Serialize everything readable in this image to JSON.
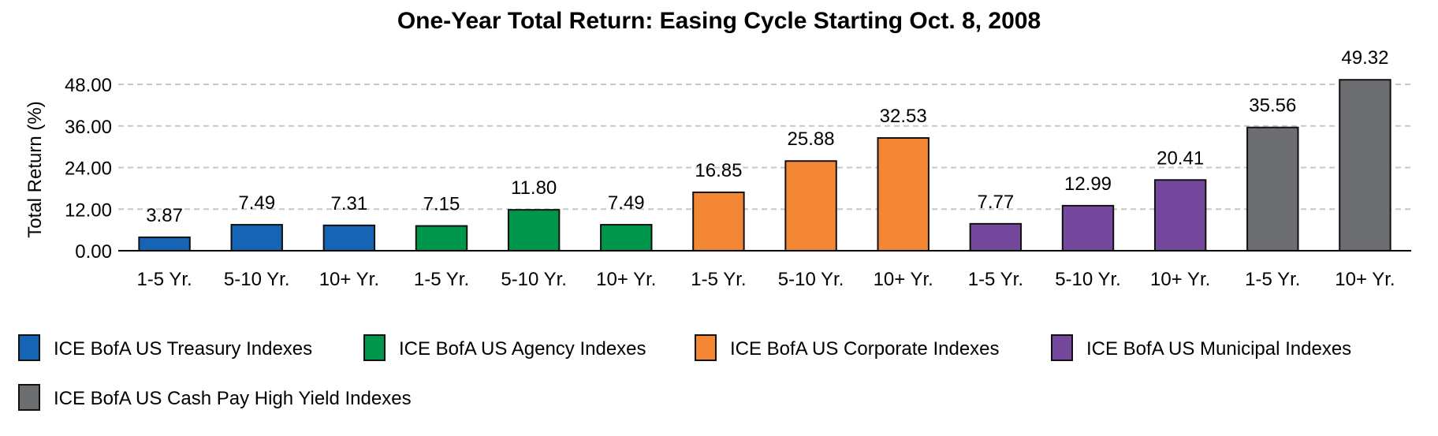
{
  "chart_data": {
    "type": "bar",
    "title": "One-Year Total Return: Easing Cycle Starting Oct. 8, 2008",
    "ylabel": "Total Return (%)",
    "xlabel": "",
    "ylim": [
      0,
      48
    ],
    "yticks": [
      "0.00",
      "12.00",
      "24.00",
      "36.00",
      "48.00"
    ],
    "grid": true,
    "legend_position": "bottom",
    "categories": [
      "1-5 Yr.",
      "5-10 Yr.",
      "10+ Yr.",
      "1-5 Yr.",
      "5-10 Yr.",
      "10+ Yr.",
      "1-5 Yr.",
      "5-10 Yr.",
      "10+ Yr.",
      "1-5 Yr.",
      "5-10 Yr.",
      "10+ Yr.",
      "1-5 Yr.",
      "10+ Yr."
    ],
    "values": [
      3.87,
      7.49,
      7.31,
      7.15,
      11.8,
      7.49,
      16.85,
      25.88,
      32.53,
      7.77,
      12.99,
      20.41,
      35.56,
      49.32
    ],
    "value_labels": [
      "3.87",
      "7.49",
      "7.31",
      "7.15",
      "11.80",
      "7.49",
      "16.85",
      "25.88",
      "32.53",
      "7.77",
      "12.99",
      "20.41",
      "35.56",
      "49.32"
    ],
    "bar_series": [
      0,
      0,
      0,
      1,
      1,
      1,
      2,
      2,
      2,
      3,
      3,
      3,
      4,
      4
    ],
    "series": [
      {
        "name": "ICE BofA US Treasury Indexes",
        "color": "#1565b4"
      },
      {
        "name": "ICE BofA US Agency Indexes",
        "color": "#00964b"
      },
      {
        "name": "ICE BofA US Corporate Indexes",
        "color": "#f48734"
      },
      {
        "name": "ICE BofA US Municipal Indexes",
        "color": "#74489d"
      },
      {
        "name": "ICE BofA US Cash Pay High Yield Indexes",
        "color": "#6d6e71"
      }
    ]
  }
}
